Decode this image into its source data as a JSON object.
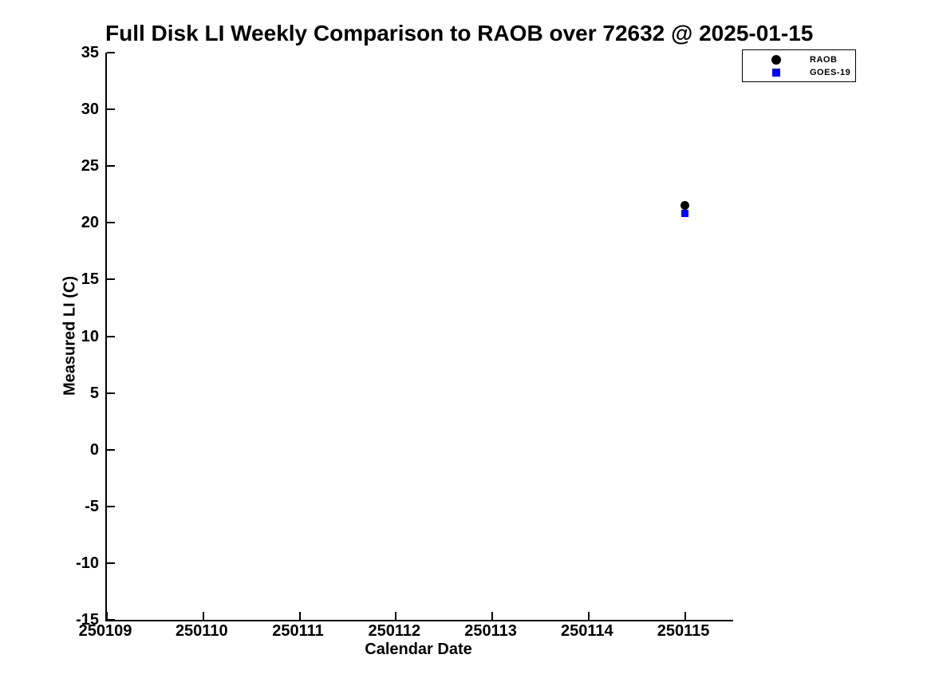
{
  "chart_data": {
    "type": "scatter",
    "title": "Full Disk LI Weekly Comparison to RAOB over 72632 @ 2025-01-15",
    "xlabel": "Calendar Date",
    "ylabel": "Measured LI (C)",
    "xlim": [
      250109,
      250115.5
    ],
    "ylim": [
      -15,
      35
    ],
    "grid": false,
    "axis_color": "#000000",
    "background_color": "#ffffff",
    "legend_position": "outside-top-right",
    "x_ticks": [
      {
        "label": "250109",
        "value": 250109
      },
      {
        "label": "250110",
        "value": 250110
      },
      {
        "label": "250111",
        "value": 250111
      },
      {
        "label": "250112",
        "value": 250112
      },
      {
        "label": "250113",
        "value": 250113
      },
      {
        "label": "250114",
        "value": 250114
      },
      {
        "label": "250115",
        "value": 250115
      }
    ],
    "y_ticks": [
      {
        "label": "35",
        "value": 35
      },
      {
        "label": "30",
        "value": 30
      },
      {
        "label": "25",
        "value": 25
      },
      {
        "label": "20",
        "value": 20
      },
      {
        "label": "15",
        "value": 15
      },
      {
        "label": "10",
        "value": 10
      },
      {
        "label": "5",
        "value": 5
      },
      {
        "label": "0",
        "value": 0
      },
      {
        "label": "-5",
        "value": -5
      },
      {
        "label": "-10",
        "value": -10
      },
      {
        "label": "-15",
        "value": -15
      }
    ],
    "series": [
      {
        "name": "RAOB",
        "marker": "circle",
        "color": "#000000",
        "marker_size": 11,
        "legend_marker_size": 12,
        "points": [
          {
            "x": 250115,
            "y": 21.5
          }
        ]
      },
      {
        "name": "GOES-19",
        "marker": "square",
        "color": "#0000ff",
        "marker_size": 9,
        "legend_marker_size": 10,
        "points": [
          {
            "x": 250115,
            "y": 20.8
          }
        ]
      }
    ]
  }
}
